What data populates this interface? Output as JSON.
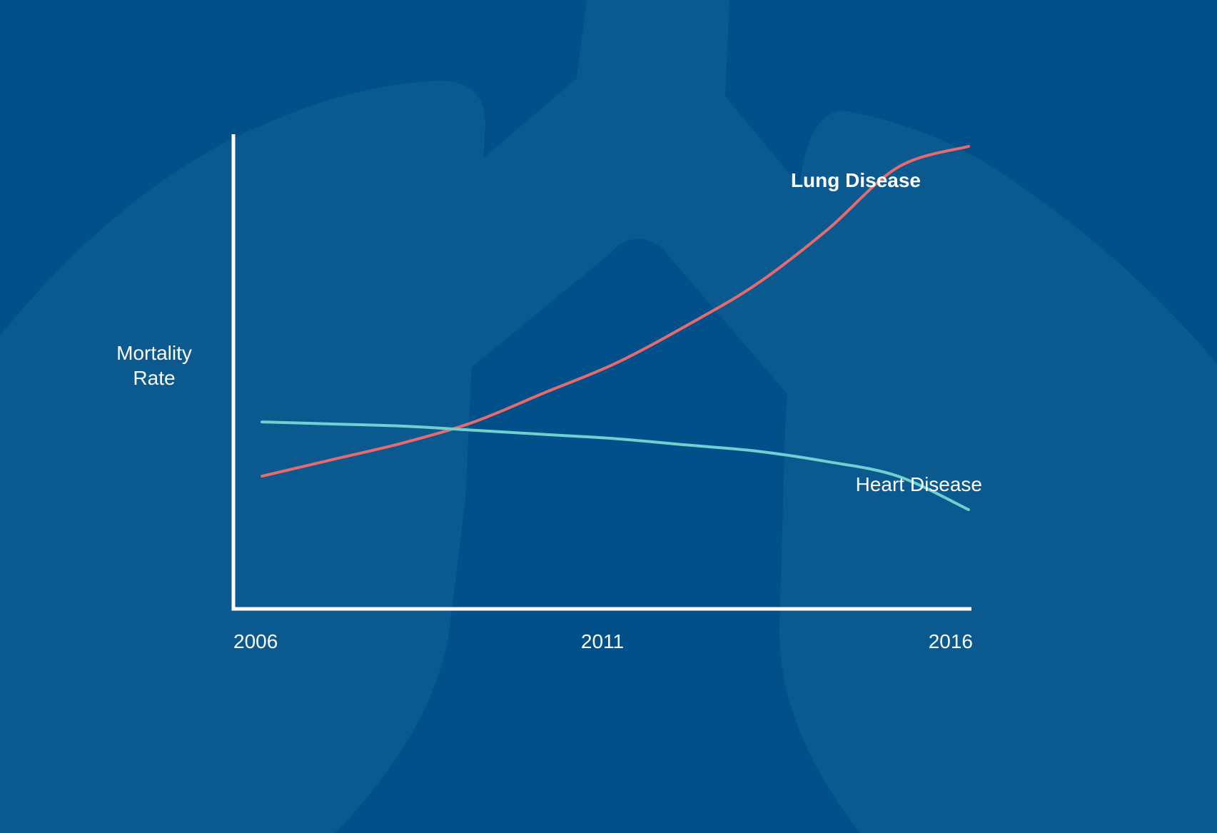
{
  "colors": {
    "background": "#015089",
    "lung_shape": "#0a5a8f",
    "axis": "#ffffff",
    "lung_disease": "#e86a6f",
    "heart_disease": "#6fd0cf",
    "text": "#ffffff"
  },
  "background_icon": "lungs-icon",
  "chart_data": {
    "type": "line",
    "title": "",
    "xlabel": "",
    "ylabel": [
      "Mortality",
      "Rate"
    ],
    "x_ticks": [
      "2006",
      "2011",
      "2016"
    ],
    "xlim": [
      2006,
      2016
    ],
    "ylim": [
      0,
      100
    ],
    "grid": false,
    "series": [
      {
        "name": "Lung Disease",
        "x": [
          2006,
          2007,
          2008,
          2009,
          2010,
          2011,
          2012,
          2013,
          2014,
          2015,
          2016
        ],
        "y": [
          21,
          25,
          29,
          34,
          41,
          48,
          57,
          67,
          80,
          95,
          100
        ]
      },
      {
        "name": "Heart Disease",
        "x": [
          2006,
          2007,
          2008,
          2009,
          2010,
          2011,
          2012,
          2013,
          2014,
          2015,
          2016
        ],
        "y": [
          34,
          33.5,
          33,
          32,
          31,
          30,
          28.5,
          27,
          24.5,
          21,
          13
        ]
      }
    ]
  }
}
